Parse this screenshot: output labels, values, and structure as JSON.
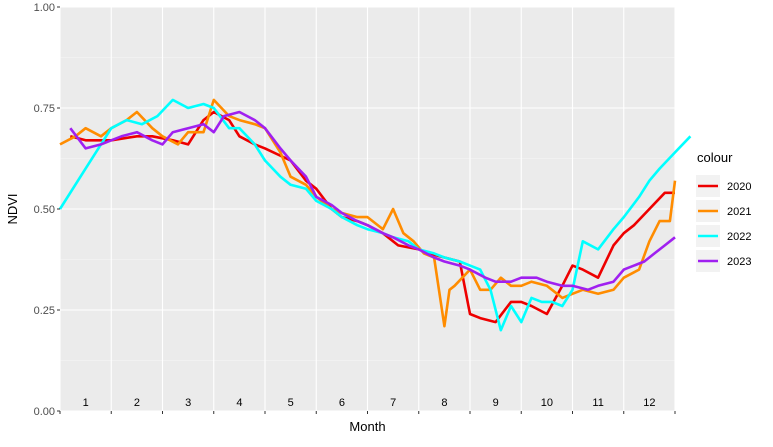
{
  "chart_data": {
    "type": "line",
    "xlabel": "Month",
    "ylabel": "NDVI",
    "xlim": [
      0,
      12
    ],
    "ylim": [
      0,
      1
    ],
    "y_ticks": [
      {
        "value": 0.0,
        "label": "0.00"
      },
      {
        "value": 0.25,
        "label": "0.25"
      },
      {
        "value": 0.5,
        "label": "0.50"
      },
      {
        "value": 0.75,
        "label": "0.75"
      },
      {
        "value": 1.0,
        "label": "1.00"
      }
    ],
    "month_labels": [
      "1",
      "2",
      "3",
      "4",
      "5",
      "6",
      "7",
      "8",
      "9",
      "10",
      "11",
      "12"
    ],
    "grid": true,
    "panel_background": "#ebebeb",
    "legend": {
      "title": "colour",
      "position": "right"
    },
    "series": [
      {
        "name": "2020",
        "color": "#ee0000",
        "x": [
          0.2,
          0.5,
          1.0,
          1.5,
          1.8,
          2.2,
          2.5,
          2.8,
          3.0,
          3.3,
          3.5,
          3.8,
          4.0,
          4.5,
          4.8,
          5.0,
          5.3,
          5.5,
          5.8,
          6.0,
          6.3,
          6.6,
          7.0,
          7.2,
          7.5,
          7.8,
          8.0,
          8.2,
          8.5,
          8.8,
          9.0,
          9.2,
          9.5,
          9.8,
          10.0,
          10.2,
          10.5,
          10.8,
          11.0,
          11.2,
          11.5,
          11.8,
          12.0
        ],
        "y": [
          0.68,
          0.67,
          0.67,
          0.68,
          0.68,
          0.67,
          0.66,
          0.72,
          0.74,
          0.72,
          0.68,
          0.66,
          0.65,
          0.62,
          0.57,
          0.55,
          0.5,
          0.48,
          0.47,
          0.46,
          0.44,
          0.41,
          0.4,
          0.39,
          0.38,
          0.37,
          0.24,
          0.23,
          0.22,
          0.27,
          0.27,
          0.26,
          0.24,
          0.31,
          0.36,
          0.35,
          0.33,
          0.41,
          0.44,
          0.46,
          0.5,
          0.54,
          0.54
        ]
      },
      {
        "name": "2021",
        "color": "#ff8c00",
        "x": [
          0.0,
          0.3,
          0.5,
          0.8,
          1.0,
          1.3,
          1.5,
          1.8,
          2.0,
          2.3,
          2.5,
          2.8,
          3.0,
          3.3,
          3.5,
          3.8,
          4.0,
          4.3,
          4.5,
          4.8,
          5.0,
          5.3,
          5.5,
          5.8,
          6.0,
          6.3,
          6.5,
          6.7,
          6.9,
          7.1,
          7.3,
          7.5,
          7.6,
          7.7,
          8.0,
          8.2,
          8.4,
          8.6,
          8.8,
          9.0,
          9.2,
          9.5,
          9.8,
          10.0,
          10.2,
          10.5,
          10.8,
          11.0,
          11.3,
          11.5,
          11.7,
          11.9,
          12.0
        ],
        "y": [
          0.66,
          0.68,
          0.7,
          0.68,
          0.7,
          0.72,
          0.74,
          0.7,
          0.68,
          0.66,
          0.69,
          0.69,
          0.77,
          0.73,
          0.72,
          0.71,
          0.7,
          0.64,
          0.58,
          0.56,
          0.53,
          0.5,
          0.49,
          0.48,
          0.48,
          0.45,
          0.5,
          0.44,
          0.42,
          0.39,
          0.38,
          0.21,
          0.3,
          0.31,
          0.35,
          0.3,
          0.3,
          0.33,
          0.31,
          0.31,
          0.32,
          0.31,
          0.28,
          0.29,
          0.3,
          0.29,
          0.3,
          0.33,
          0.35,
          0.42,
          0.47,
          0.47,
          0.57
        ]
      },
      {
        "name": "2022",
        "color": "#00ffff",
        "x": [
          0.0,
          0.5,
          1.0,
          1.3,
          1.6,
          1.9,
          2.2,
          2.5,
          2.8,
          3.0,
          3.3,
          3.5,
          3.8,
          4.0,
          4.3,
          4.5,
          4.8,
          5.0,
          5.3,
          5.5,
          5.8,
          6.0,
          6.3,
          6.5,
          6.8,
          7.0,
          7.3,
          7.5,
          7.8,
          8.0,
          8.2,
          8.4,
          8.6,
          8.8,
          9.0,
          9.2,
          9.4,
          9.6,
          9.8,
          10.0,
          10.2,
          10.5,
          10.8,
          11.0,
          11.3,
          11.5,
          11.7,
          12.0,
          12.3
        ],
        "y": [
          0.5,
          0.6,
          0.7,
          0.72,
          0.71,
          0.73,
          0.77,
          0.75,
          0.76,
          0.75,
          0.7,
          0.7,
          0.66,
          0.62,
          0.58,
          0.56,
          0.55,
          0.52,
          0.5,
          0.48,
          0.46,
          0.45,
          0.44,
          0.43,
          0.42,
          0.4,
          0.39,
          0.38,
          0.37,
          0.36,
          0.35,
          0.3,
          0.2,
          0.26,
          0.22,
          0.28,
          0.27,
          0.27,
          0.26,
          0.3,
          0.42,
          0.4,
          0.45,
          0.48,
          0.53,
          0.57,
          0.6,
          0.64,
          0.68
        ]
      },
      {
        "name": "2023",
        "color": "#a020f0",
        "x": [
          0.2,
          0.5,
          0.8,
          1.0,
          1.2,
          1.5,
          1.8,
          2.0,
          2.2,
          2.5,
          2.8,
          3.0,
          3.2,
          3.5,
          3.8,
          4.0,
          4.3,
          4.5,
          4.8,
          5.0,
          5.3,
          5.5,
          5.8,
          6.0,
          6.3,
          6.5,
          6.8,
          7.0,
          7.3,
          7.5,
          7.8,
          8.0,
          8.3,
          8.5,
          8.8,
          9.0,
          9.3,
          9.5,
          9.8,
          10.0,
          10.3,
          10.5,
          10.8,
          11.0,
          11.2,
          11.4,
          11.6,
          11.8,
          12.0
        ],
        "y": [
          0.7,
          0.65,
          0.66,
          0.67,
          0.68,
          0.69,
          0.67,
          0.66,
          0.69,
          0.7,
          0.71,
          0.69,
          0.73,
          0.74,
          0.72,
          0.7,
          0.65,
          0.62,
          0.58,
          0.53,
          0.51,
          0.49,
          0.47,
          0.46,
          0.44,
          0.43,
          0.41,
          0.4,
          0.38,
          0.37,
          0.36,
          0.35,
          0.33,
          0.32,
          0.32,
          0.33,
          0.33,
          0.32,
          0.31,
          0.31,
          0.3,
          0.31,
          0.32,
          0.35,
          0.36,
          0.37,
          0.39,
          0.41,
          0.43
        ]
      }
    ]
  }
}
